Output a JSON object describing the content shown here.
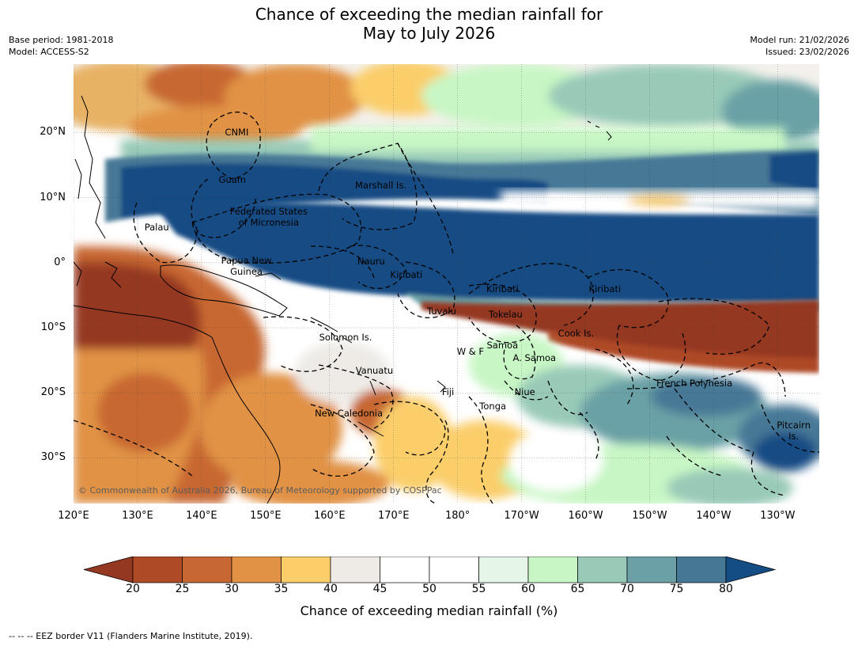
{
  "title": {
    "line1": "Chance of exceeding the median rainfall for",
    "line2": "May to July 2026"
  },
  "meta_left": {
    "base_period": "Base period: 1981-2018",
    "model": "Model: ACCESS-S2"
  },
  "meta_right": {
    "model_run": "Model run: 21/02/2026",
    "issued": "Issued: 23/02/2026"
  },
  "map": {
    "lat_ticks": [
      "20°N",
      "10°N",
      "0°",
      "10°S",
      "20°S",
      "30°S"
    ],
    "lat_values": [
      20,
      10,
      0,
      -10,
      -20,
      -30
    ],
    "lon_ticks": [
      "120°E",
      "130°E",
      "140°E",
      "150°E",
      "160°E",
      "170°E",
      "180°",
      "170°W",
      "160°W",
      "150°W",
      "140°W",
      "130°W"
    ],
    "lon_values": [
      120,
      130,
      140,
      150,
      160,
      170,
      180,
      190,
      200,
      210,
      220,
      230
    ],
    "extent": {
      "lon_min": 120,
      "lon_max": 236.5,
      "lat_min": -37,
      "lat_max": 30.5
    },
    "place_labels": [
      {
        "name": "CNMI",
        "lon": 145.5,
        "lat": 20.0
      },
      {
        "name": "Guam",
        "lon": 144.8,
        "lat": 12.8
      },
      {
        "name": "Marshall Is.",
        "lon": 168.0,
        "lat": 11.9
      },
      {
        "name": "Federated States\nof Micronesia",
        "lon": 150.5,
        "lat": 7.0
      },
      {
        "name": "Palau",
        "lon": 133.0,
        "lat": 5.5
      },
      {
        "name": "Papua New\nGuinea",
        "lon": 147.0,
        "lat": -0.5
      },
      {
        "name": "Nauru",
        "lon": 166.5,
        "lat": 0.2
      },
      {
        "name": "Kiribati",
        "lon": 172.0,
        "lat": -1.8
      },
      {
        "name": "Kiribati",
        "lon": 187.0,
        "lat": -4.0
      },
      {
        "name": "Kiribati",
        "lon": 203.0,
        "lat": -4.0
      },
      {
        "name": "Tuvalu",
        "lon": 177.5,
        "lat": -7.5
      },
      {
        "name": "Tokelau",
        "lon": 187.5,
        "lat": -7.9
      },
      {
        "name": "Cook Is.",
        "lon": 198.5,
        "lat": -10.8
      },
      {
        "name": "Solomon Is.",
        "lon": 162.5,
        "lat": -11.4
      },
      {
        "name": "Samoa",
        "lon": 187.0,
        "lat": -12.7
      },
      {
        "name": "W & F",
        "lon": 182.0,
        "lat": -13.6
      },
      {
        "name": "A. Samoa",
        "lon": 192.0,
        "lat": -14.6
      },
      {
        "name": "Vanuatu",
        "lon": 167.0,
        "lat": -16.6
      },
      {
        "name": "French Polynesia",
        "lon": 217.0,
        "lat": -18.5
      },
      {
        "name": "Fiji",
        "lon": 178.5,
        "lat": -19.8
      },
      {
        "name": "Niue",
        "lon": 190.5,
        "lat": -19.8
      },
      {
        "name": "Tonga",
        "lon": 185.5,
        "lat": -22.0
      },
      {
        "name": "New Caledonia",
        "lon": 163.0,
        "lat": -23.1
      },
      {
        "name": "Pitcairn\nIs.",
        "lon": 232.5,
        "lat": -25.8
      }
    ],
    "copyright": "© Commonwealth of Australia 2026, Bureau of Meteorology supported by COSPPac"
  },
  "colorbar": {
    "ticks": [
      "20",
      "25",
      "30",
      "35",
      "40",
      "45",
      "50",
      "55",
      "60",
      "65",
      "70",
      "75",
      "80"
    ],
    "colors": [
      "#ae4a26",
      "#c76733",
      "#e19245",
      "#fbce6a",
      "#eeebe7",
      "#ffffff",
      "#ffffff",
      "#e6f6e6",
      "#c8f7c5",
      "#99cab8",
      "#6ba1a6",
      "#467896"
    ],
    "under_color": "#953822",
    "over_color": "#144c84",
    "label": "Chance of exceeding median rainfall (%)"
  },
  "footnote": "--  --  -- EEZ border V11 (Flanders Marine Institute, 2019)."
}
